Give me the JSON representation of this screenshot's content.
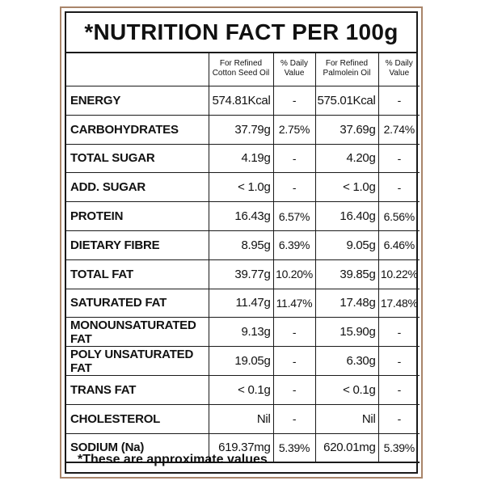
{
  "title": "*NUTRITION FACT PER 100g",
  "columns": [
    "For Refined Cotton Seed Oil",
    "% Daily Value",
    "For Refined Palmolein Oil",
    "% Daily Value"
  ],
  "col1": {
    "line1": "For Refined",
    "line2": "Cotton Seed Oil"
  },
  "col2": {
    "line1": "% Daily",
    "line2": "Value"
  },
  "col3": {
    "line1": "For Refined",
    "line2": "Palmolein Oil"
  },
  "col4": {
    "line1": "% Daily",
    "line2": "Value"
  },
  "rows": [
    {
      "name": "ENERGY",
      "cotton": "574.81Kcal",
      "cotton_dv": "-",
      "palm": "575.01Kcal",
      "palm_dv": "-"
    },
    {
      "name": "CARBOHYDRATES",
      "cotton": "37.79g",
      "cotton_dv": "2.75%",
      "palm": "37.69g",
      "palm_dv": "2.74%"
    },
    {
      "name": "TOTAL SUGAR",
      "cotton": "4.19g",
      "cotton_dv": "-",
      "palm": "4.20g",
      "palm_dv": "-"
    },
    {
      "name": "ADD. SUGAR",
      "cotton": "< 1.0g",
      "cotton_dv": "-",
      "palm": "< 1.0g",
      "palm_dv": "-"
    },
    {
      "name": "PROTEIN",
      "cotton": "16.43g",
      "cotton_dv": "6.57%",
      "palm": "16.40g",
      "palm_dv": "6.56%"
    },
    {
      "name": "DIETARY FIBRE",
      "cotton": "8.95g",
      "cotton_dv": "6.39%",
      "palm": "9.05g",
      "palm_dv": "6.46%"
    },
    {
      "name": "TOTAL FAT",
      "cotton": "39.77g",
      "cotton_dv": "10.20%",
      "palm": "39.85g",
      "palm_dv": "10.22%"
    },
    {
      "name": "SATURATED FAT",
      "cotton": "11.47g",
      "cotton_dv": "11.47%",
      "palm": "17.48g",
      "palm_dv": "17.48%"
    },
    {
      "name": "MONOUNSATURATED FAT",
      "cotton": "9.13g",
      "cotton_dv": "-",
      "palm": "15.90g",
      "palm_dv": "-"
    },
    {
      "name": "POLY UNSATURATED FAT",
      "cotton": "19.05g",
      "cotton_dv": "-",
      "palm": "6.30g",
      "palm_dv": "-"
    },
    {
      "name": "TRANS FAT",
      "cotton": "< 0.1g",
      "cotton_dv": "-",
      "palm": "< 0.1g",
      "palm_dv": "-"
    },
    {
      "name": "CHOLESTEROL",
      "cotton": "Nil",
      "cotton_dv": "-",
      "palm": "Nil",
      "palm_dv": "-"
    },
    {
      "name": "SODIUM (Na)",
      "cotton": "619.37mg",
      "cotton_dv": "5.39%",
      "palm": "620.01mg",
      "palm_dv": "5.39%"
    }
  ],
  "footnote": "*These are approximate values"
}
